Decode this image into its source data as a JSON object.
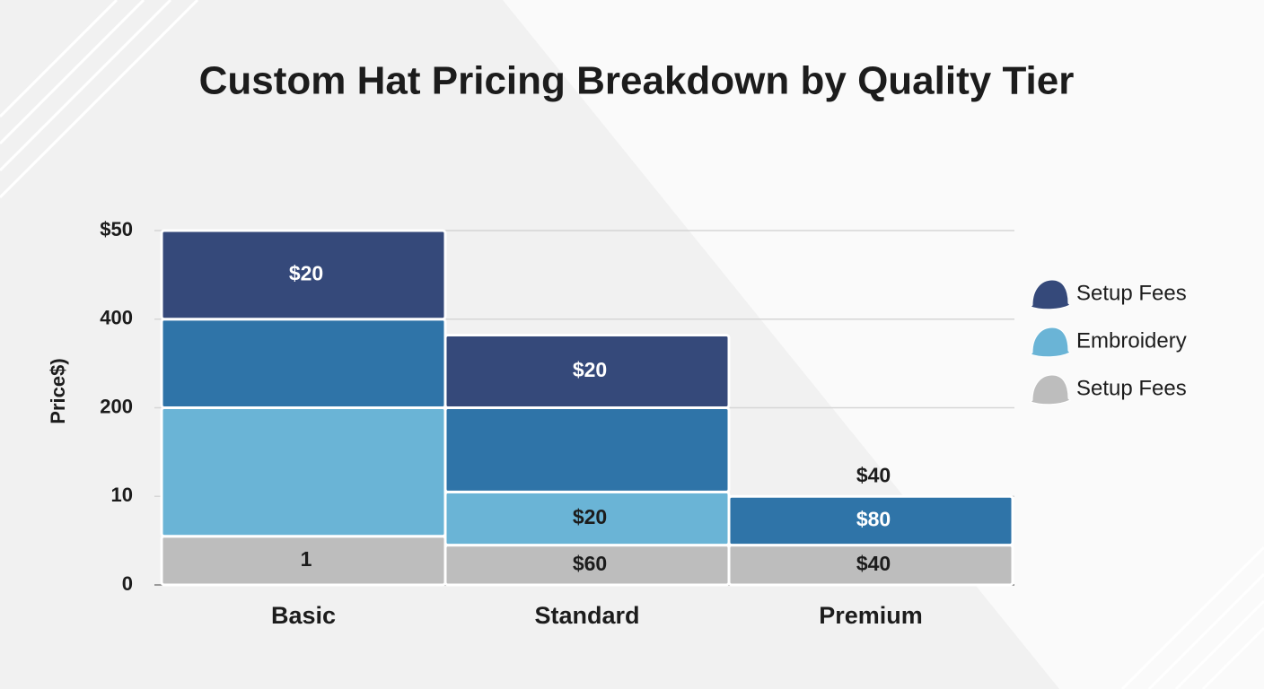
{
  "chart_data": {
    "type": "stacked_bar",
    "title": "Custom Hat Pricing Breakdown by Quality Tier",
    "y_label": "Price$)",
    "categories": [
      "Basic",
      "Standard",
      "Premium"
    ],
    "ylim": [
      0,
      4
    ],
    "yticks": [
      0,
      {
        "value": 1,
        "label": "10"
      },
      {
        "value": 2,
        "label": "200"
      },
      {
        "value": 3,
        "label": "400"
      },
      {
        "value": 4,
        "label": "$50"
      }
    ],
    "grid": true,
    "legend": "right",
    "series": [
      {
        "name": "Setup Fees",
        "color": "#bdbdbd",
        "values": [
          0.55,
          0.45,
          0.45
        ],
        "labels": [
          "1",
          "$60",
          "$40"
        ]
      },
      {
        "name": "Embroidery",
        "color": "#6ab4d6",
        "values": [
          1.45,
          0.6,
          0
        ],
        "labels": [
          null,
          "$20",
          null
        ]
      },
      {
        "color": "#2f74a8",
        "values": [
          1.0,
          0.95,
          0.55
        ],
        "labels": [
          null,
          null,
          "$80"
        ]
      },
      {
        "name": "Setup Fees",
        "color": "#35497a",
        "values": [
          1.0,
          0.82,
          0
        ],
        "labels": [
          "$20",
          "$20",
          "$40"
        ]
      }
    ]
  }
}
